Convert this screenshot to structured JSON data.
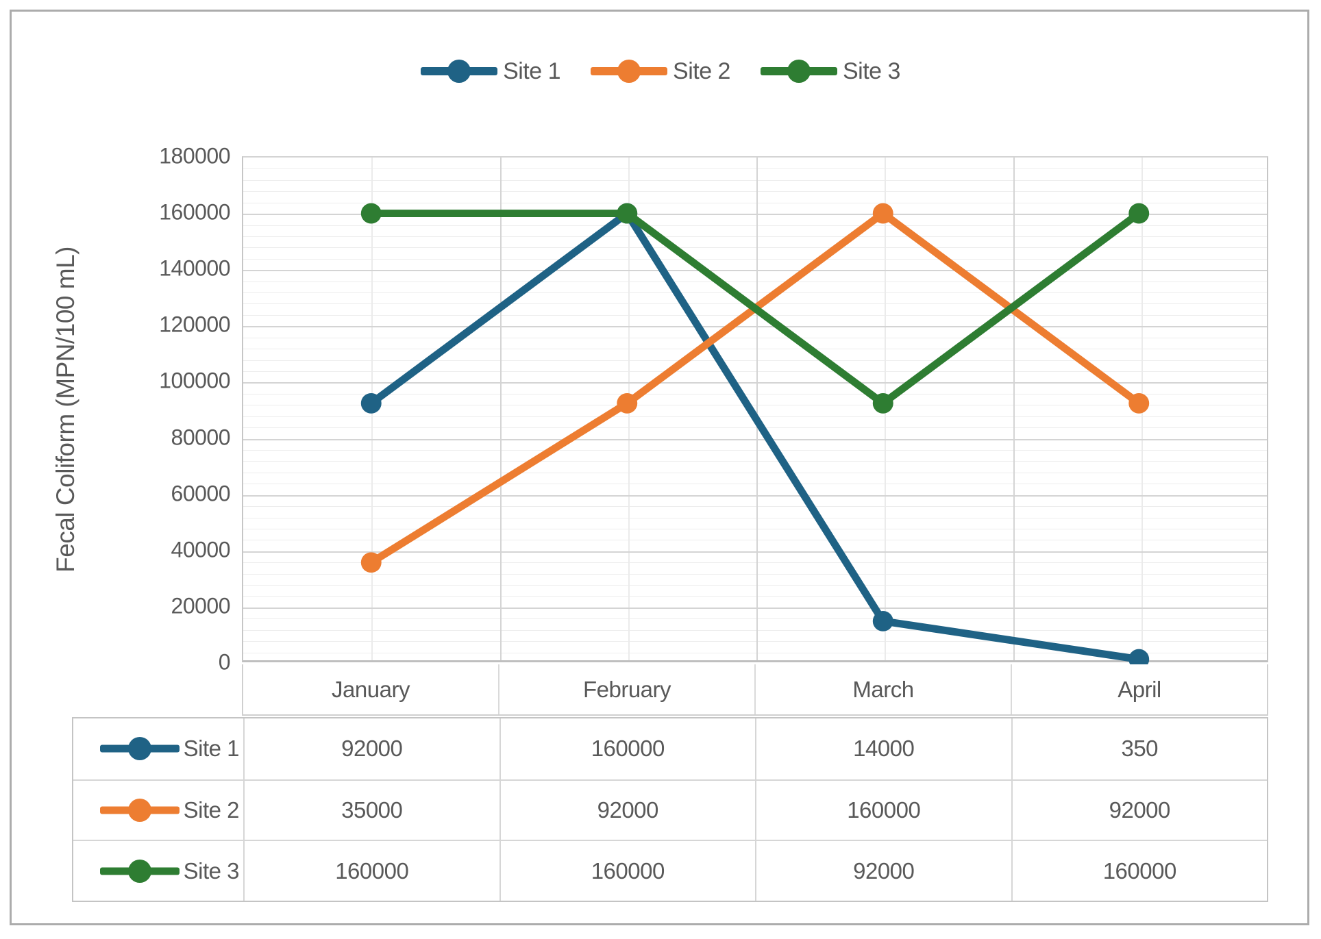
{
  "figure": {
    "kind": "excel-line-chart-with-data-table"
  },
  "legend": {
    "position": "top",
    "items": [
      {
        "label": "Site 1",
        "color": "#1F6285"
      },
      {
        "label": "Site 2",
        "color": "#ED7D31"
      },
      {
        "label": "Site 3",
        "color": "#2E7D32"
      }
    ]
  },
  "y_axis": {
    "title": "Fecal Coliform (MPN/100 mL)",
    "tick_labels": [
      "0",
      "20000",
      "40000",
      "60000",
      "80000",
      "100000",
      "120000",
      "140000",
      "160000",
      "180000"
    ],
    "min": 0,
    "max": 180000,
    "major_step": 20000,
    "minor_step": 4000
  },
  "x_axis": {
    "categories": [
      "January",
      "February",
      "March",
      "April"
    ]
  },
  "data_table": {
    "rows": [
      {
        "label": "Site 1",
        "color": "#1F6285",
        "values": [
          "92000",
          "160000",
          "14000",
          "350"
        ]
      },
      {
        "label": "Site 2",
        "color": "#ED7D31",
        "values": [
          "35000",
          "92000",
          "160000",
          "92000"
        ]
      },
      {
        "label": "Site 3",
        "color": "#2E7D32",
        "values": [
          "160000",
          "160000",
          "92000",
          "160000"
        ]
      }
    ]
  },
  "chart_data": {
    "type": "line",
    "categories": [
      "January",
      "February",
      "March",
      "April"
    ],
    "series": [
      {
        "name": "Site 1",
        "values": [
          92000,
          160000,
          14000,
          350
        ],
        "color": "#1F6285"
      },
      {
        "name": "Site 2",
        "values": [
          35000,
          92000,
          160000,
          92000
        ],
        "color": "#ED7D31"
      },
      {
        "name": "Site 3",
        "values": [
          160000,
          160000,
          92000,
          160000
        ],
        "color": "#2E7D32"
      }
    ],
    "title": "",
    "xlabel": "",
    "ylabel": "Fecal Coliform (MPN/100 mL)",
    "ylim": [
      0,
      180000
    ],
    "y_major_step": 20000,
    "y_minor_step": 4000,
    "grid": "major+minor",
    "markers": "circle",
    "legend_position": "top",
    "data_table_shown": true
  },
  "colors": {
    "text": "#595959",
    "grid_major": "#D4D4D4",
    "grid_minor": "#EDEDED",
    "axis_line": "#BFBFBF",
    "table_border": "#D6D6D6",
    "frame_border": "#ACACAC",
    "background": "#FFFFFF"
  }
}
